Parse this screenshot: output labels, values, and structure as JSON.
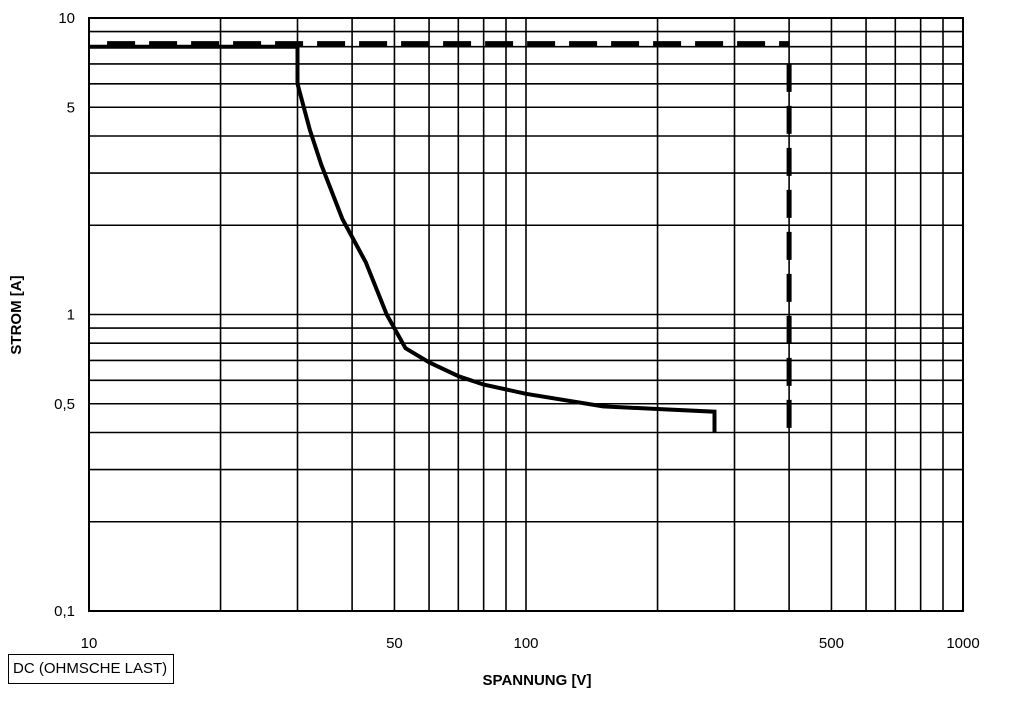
{
  "chart_data": {
    "type": "line",
    "title": "",
    "xlabel": "SPANNUNG [V]",
    "ylabel": "STROM [A]",
    "x_scale": "log",
    "y_scale": "log",
    "xlim": [
      10,
      1000
    ],
    "ylim": [
      0.1,
      10
    ],
    "grid": true,
    "x_tick_labels": [
      {
        "value": 10,
        "label": "10"
      },
      {
        "value": 50,
        "label": "50"
      },
      {
        "value": 100,
        "label": "100"
      },
      {
        "value": 500,
        "label": "500"
      },
      {
        "value": 1000,
        "label": "1000"
      }
    ],
    "y_tick_labels": [
      {
        "value": 10,
        "label": "10"
      },
      {
        "value": 5,
        "label": "5"
      },
      {
        "value": 1,
        "label": "1"
      },
      {
        "value": 0.5,
        "label": "0,5"
      },
      {
        "value": 0.1,
        "label": "0,1"
      }
    ],
    "x_gridlines": [
      10,
      20,
      30,
      40,
      50,
      60,
      70,
      80,
      90,
      100,
      200,
      300,
      400,
      500,
      600,
      700,
      800,
      900,
      1000
    ],
    "y_gridlines": [
      0.1,
      0.2,
      0.3,
      0.4,
      0.5,
      0.6,
      0.7,
      0.8,
      0.9,
      1,
      2,
      3,
      4,
      5,
      6,
      7,
      8,
      9,
      10
    ],
    "series": [
      {
        "style": "solid",
        "color": "#000000",
        "points": [
          [
            10,
            8
          ],
          [
            30,
            8
          ],
          [
            30,
            6
          ],
          [
            32,
            4.2
          ],
          [
            34,
            3.2
          ],
          [
            38,
            2.1
          ],
          [
            43,
            1.5
          ],
          [
            48,
            1.0
          ],
          [
            53,
            0.77
          ],
          [
            60,
            0.69
          ],
          [
            70,
            0.62
          ],
          [
            80,
            0.58
          ],
          [
            100,
            0.54
          ],
          [
            150,
            0.49
          ],
          [
            200,
            0.48
          ],
          [
            270,
            0.47
          ],
          [
            270,
            0.4
          ]
        ]
      },
      {
        "style": "dashed",
        "color": "#000000",
        "points": [
          [
            11,
            8.2
          ],
          [
            400,
            8.2
          ],
          null,
          [
            400,
            7
          ],
          [
            400,
            0.4
          ]
        ]
      }
    ],
    "annotations": [
      "DC (OHMSCHE LAST)"
    ]
  }
}
